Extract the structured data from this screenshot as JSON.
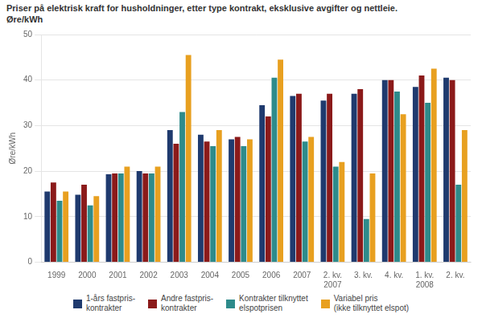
{
  "chart_data": {
    "type": "bar",
    "title": "Priser på elektrisk kraft for husholdninger, etter type kontrakt, eksklusive avgifter og nettleie.",
    "subtitle": "Øre/kWh",
    "ylabel": "Øre/kWh",
    "categories": [
      "1999",
      "2000",
      "2001",
      "2002",
      "2003",
      "2004",
      "2005",
      "2006",
      "2007",
      "2. kv.\n2007",
      "3. kv.",
      "4. kv.",
      "1. kv.\n2008",
      "2. kv."
    ],
    "series": [
      {
        "name": "1-års fastpris-\nkontrakter",
        "color": "#1f3a6e",
        "values": [
          15.5,
          14.8,
          19.3,
          20.0,
          29.0,
          28.0,
          27.0,
          34.5,
          36.5,
          35.5,
          37.0,
          40.0,
          38.5,
          40.5
        ]
      },
      {
        "name": "Andre fastpris-\nkontrakter",
        "color": "#8b1a1a",
        "values": [
          17.5,
          17.0,
          19.5,
          19.5,
          26.0,
          26.5,
          27.5,
          32.0,
          37.0,
          37.0,
          38.0,
          40.0,
          41.0,
          40.0
        ]
      },
      {
        "name": "Kontrakter tilknyttet\nelspotprisen",
        "color": "#2e8b8b",
        "values": [
          13.5,
          12.5,
          19.5,
          19.5,
          33.0,
          25.5,
          25.5,
          40.5,
          26.5,
          21.0,
          9.5,
          37.5,
          35.0,
          17.0
        ]
      },
      {
        "name": "Variabel pris\n(ikke tilknyttet elspot)",
        "color": "#e8a020",
        "values": [
          15.5,
          14.5,
          21.0,
          21.0,
          45.5,
          29.0,
          27.0,
          44.5,
          27.5,
          22.0,
          19.5,
          32.5,
          42.5,
          29.0
        ]
      }
    ],
    "ylim": [
      0,
      50
    ],
    "yticks": [
      0,
      10,
      20,
      30,
      40,
      50
    ],
    "grid": true,
    "legend": "bottom"
  }
}
